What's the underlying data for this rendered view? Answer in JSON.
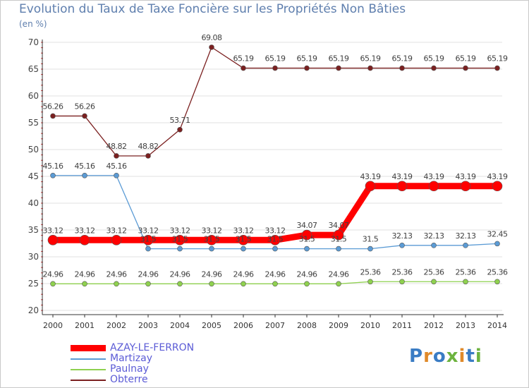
{
  "chart_data": {
    "type": "line",
    "title": "Evolution du Taux de Taxe Foncière sur les Propriétés Non Bâties",
    "ylabel": "(en %)",
    "ylim": [
      20,
      70
    ],
    "yticks": [
      20,
      25,
      30,
      35,
      40,
      45,
      50,
      55,
      60,
      65,
      70
    ],
    "categories": [
      "2000",
      "2001",
      "2002",
      "2003",
      "2004",
      "2005",
      "2006",
      "2007",
      "2008",
      "2009",
      "2010",
      "2011",
      "2012",
      "2013",
      "2014"
    ],
    "series": [
      {
        "name": "AZAY-LE-FERRON",
        "color": "#ff0000",
        "values": [
          33.12,
          33.12,
          33.12,
          33.12,
          33.12,
          33.12,
          33.12,
          33.12,
          34.07,
          34.07,
          43.19,
          43.19,
          43.19,
          43.19,
          43.19
        ],
        "labels": [
          "33.12",
          "33.12",
          "33.12",
          "33.12",
          "33.12",
          "33.12",
          "33.12",
          "33.12",
          "34.07",
          "34.07",
          "43.19",
          "43.19",
          "43.19",
          "43.19",
          "43.19"
        ]
      },
      {
        "name": "Martizay",
        "color": "#5b9bd5",
        "values": [
          45.16,
          45.16,
          45.16,
          31.5,
          31.5,
          31.5,
          31.5,
          31.5,
          31.5,
          31.5,
          31.5,
          32.13,
          32.13,
          32.13,
          32.45
        ],
        "labels": [
          "45.16",
          "45.16",
          "45.16",
          "31.5",
          "31.5",
          "31.5",
          "31.5",
          "31.5",
          "31.5",
          "31.5",
          "31.5",
          "32.13",
          "32.13",
          "32.13",
          "32.45"
        ]
      },
      {
        "name": "Paulnay",
        "color": "#8fd14f",
        "values": [
          24.96,
          24.96,
          24.96,
          24.96,
          24.96,
          24.96,
          24.96,
          24.96,
          24.96,
          24.96,
          25.36,
          25.36,
          25.36,
          25.36,
          25.36
        ],
        "labels": [
          "24.96",
          "24.96",
          "24.96",
          "24.96",
          "24.96",
          "24.96",
          "24.96",
          "24.96",
          "24.96",
          "24.96",
          "25.36",
          "25.36",
          "25.36",
          "25.36",
          "25.36"
        ]
      },
      {
        "name": "Obterre",
        "color": "#7b2020",
        "values": [
          56.26,
          56.26,
          48.82,
          48.82,
          53.71,
          69.08,
          65.19,
          65.19,
          65.19,
          65.19,
          65.19,
          65.19,
          65.19,
          65.19,
          65.19
        ],
        "labels": [
          "56.26",
          "56.26",
          "48.82",
          "48.82",
          "53.71",
          "69.08",
          "65.19",
          "65.19",
          "65.19",
          "65.19",
          "65.19",
          "65.19",
          "65.19",
          "65.19",
          "65.19"
        ]
      }
    ]
  },
  "brand": {
    "letters": [
      "P",
      "r",
      "o",
      "x",
      "i",
      "t",
      "i"
    ]
  }
}
